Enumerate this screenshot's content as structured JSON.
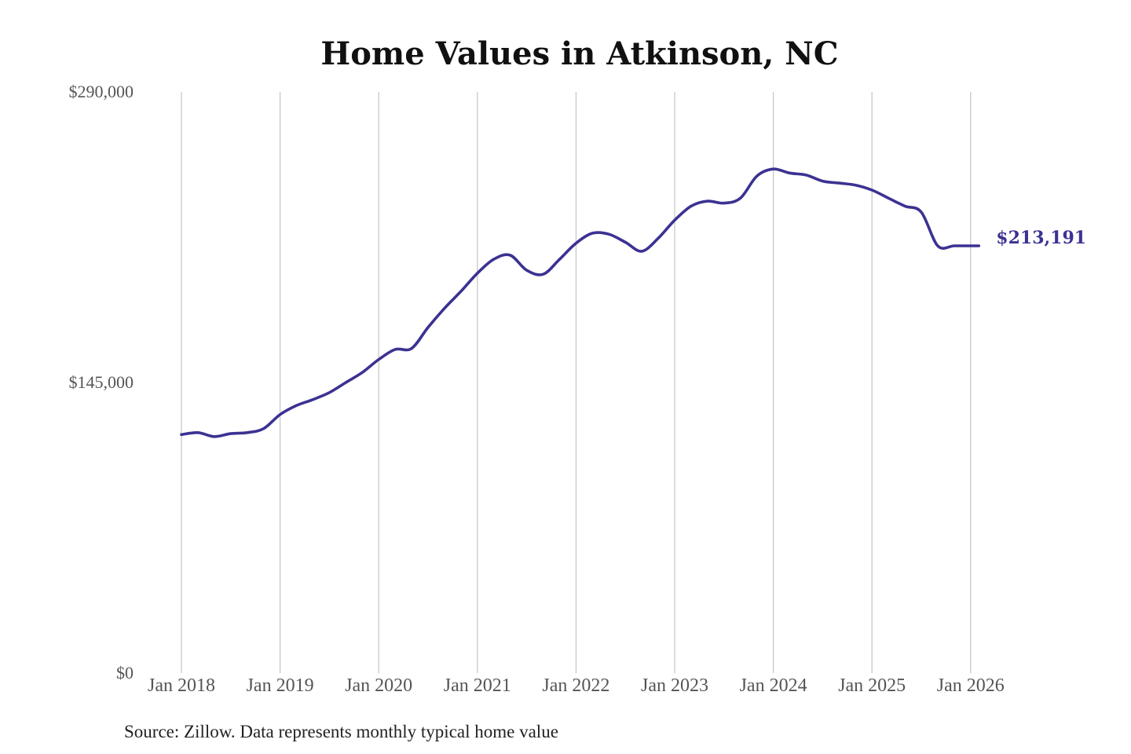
{
  "chart_data": {
    "type": "line",
    "title": "Home Values in Atkinson, NC",
    "xlabel": "",
    "ylabel": "",
    "ylim": [
      0,
      290000
    ],
    "yticks": [
      {
        "value": 0,
        "label": "$0"
      },
      {
        "value": 145000,
        "label": "$145,000"
      },
      {
        "value": 290000,
        "label": "$290,000"
      }
    ],
    "xticks": [
      {
        "value": "2018-01",
        "label": "Jan 2018"
      },
      {
        "value": "2019-01",
        "label": "Jan 2019"
      },
      {
        "value": "2020-01",
        "label": "Jan 2020"
      },
      {
        "value": "2021-01",
        "label": "Jan 2021"
      },
      {
        "value": "2022-01",
        "label": "Jan 2022"
      },
      {
        "value": "2023-01",
        "label": "Jan 2023"
      },
      {
        "value": "2024-01",
        "label": "Jan 2024"
      },
      {
        "value": "2025-01",
        "label": "Jan 2025"
      },
      {
        "value": "2026-01",
        "label": "Jan 2026"
      }
    ],
    "grid": "vertical",
    "series": [
      {
        "color": "#3b3292",
        "x": [
          "2018-01",
          "2018-03",
          "2018-05",
          "2018-07",
          "2018-09",
          "2018-11",
          "2019-01",
          "2019-03",
          "2019-05",
          "2019-07",
          "2019-09",
          "2019-11",
          "2020-01",
          "2020-03",
          "2020-05",
          "2020-07",
          "2020-09",
          "2020-11",
          "2021-01",
          "2021-03",
          "2021-05",
          "2021-07",
          "2021-09",
          "2021-11",
          "2022-01",
          "2022-03",
          "2022-05",
          "2022-07",
          "2022-09",
          "2022-11",
          "2023-01",
          "2023-03",
          "2023-05",
          "2023-07",
          "2023-09",
          "2023-11",
          "2024-01",
          "2024-03",
          "2024-05",
          "2024-07",
          "2024-09",
          "2024-11",
          "2025-01",
          "2025-03",
          "2025-05",
          "2025-07",
          "2025-09",
          "2025-11",
          "2026-01",
          "2026-02"
        ],
        "values": [
          119000,
          120000,
          118000,
          119500,
          120000,
          122000,
          129000,
          133500,
          136500,
          140000,
          145000,
          150000,
          156500,
          161500,
          162000,
          172500,
          182000,
          190500,
          199500,
          206500,
          208500,
          201000,
          199000,
          206500,
          214500,
          219500,
          219000,
          215000,
          210500,
          217000,
          226000,
          233000,
          235500,
          234500,
          237000,
          248000,
          251500,
          249500,
          248500,
          245500,
          244500,
          243500,
          241000,
          237000,
          233000,
          230000,
          213191,
          213191,
          213191,
          213191
        ],
        "end_label": "$213,191"
      }
    ]
  },
  "source_note": "Source: Zillow. Data represents monthly typical home value"
}
